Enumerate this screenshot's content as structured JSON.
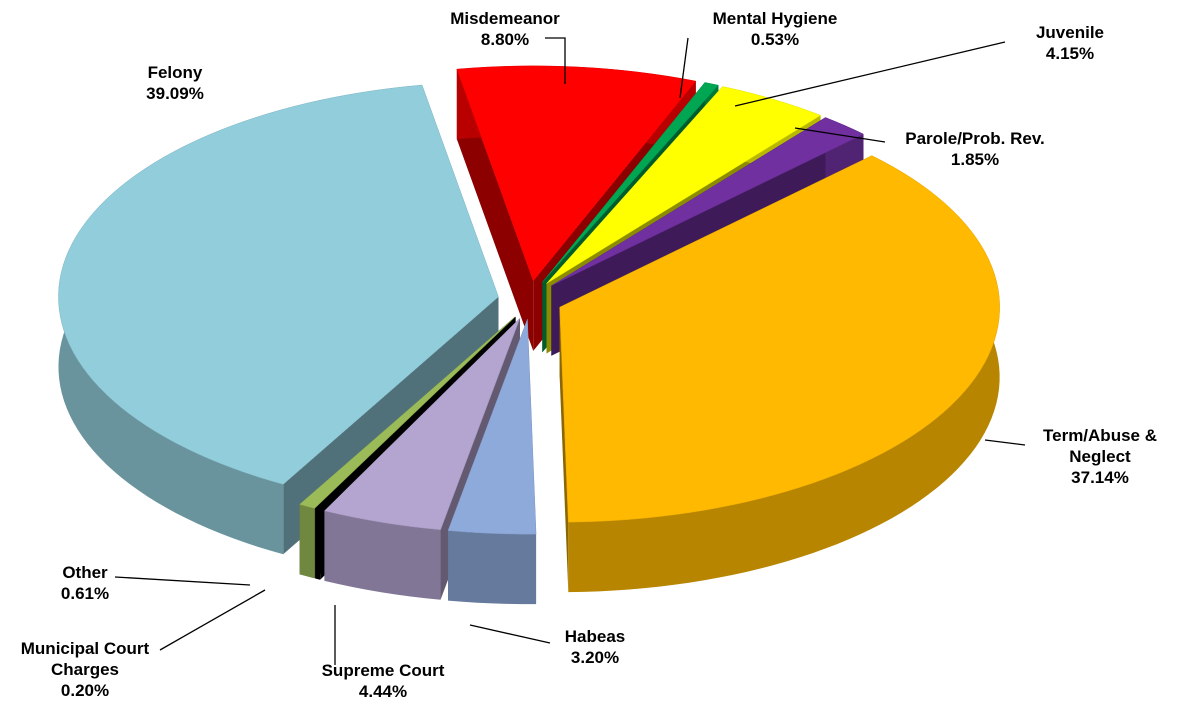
{
  "chart_data": {
    "type": "pie",
    "categories": [
      "Misdemeanor",
      "Mental Hygiene",
      "Juvenile",
      "Parole/Prob. Rev.",
      "Term/Abuse & Neglect",
      "Habeas",
      "Supreme Court",
      "Municipal Court Charges",
      "Other",
      "Felony"
    ],
    "values": [
      8.8,
      0.53,
      4.15,
      1.85,
      37.14,
      3.2,
      4.44,
      0.2,
      0.61,
      39.09
    ],
    "value_labels": [
      "8.80%",
      "0.53%",
      "4.15%",
      "1.85%",
      "37.14%",
      "3.20%",
      "4.44%",
      "0.20%",
      "0.61%",
      "39.09%"
    ],
    "colors": [
      "#ff0000",
      "#00a651",
      "#ffff00",
      "#7030a0",
      "#ffb900",
      "#8eaadb",
      "#b4a4d0",
      "#000000",
      "#9bbb59",
      "#92cddc"
    ]
  }
}
